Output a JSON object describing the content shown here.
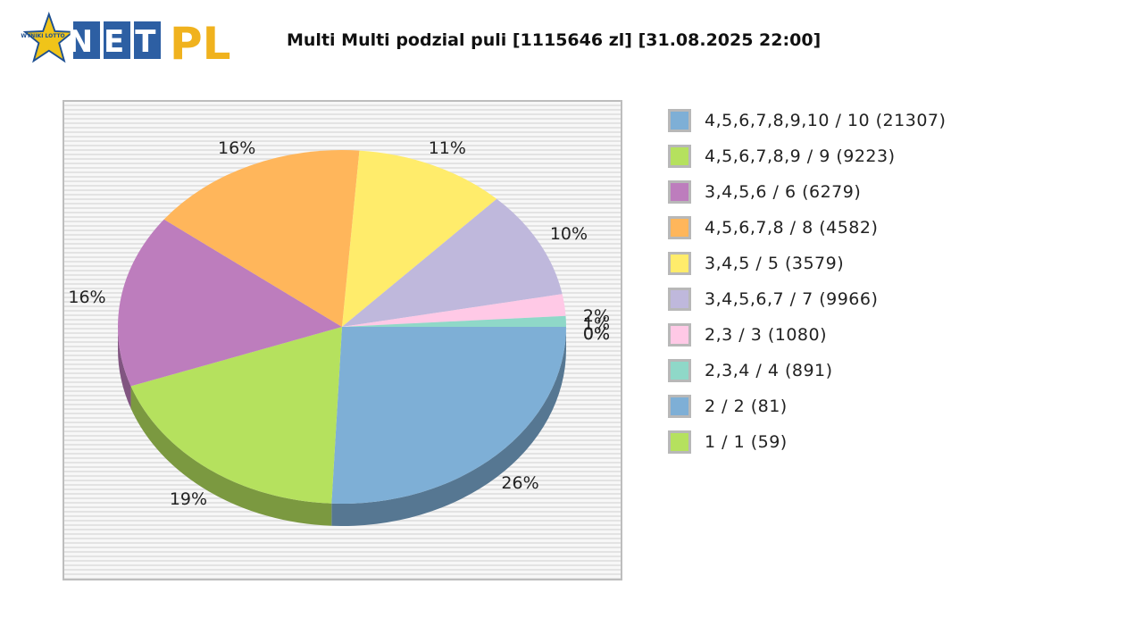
{
  "header": {
    "logo_text": "NET",
    "logo_suffix": "PL",
    "badge_text": "WYNIKI LOTTO",
    "title": "Multi Multi podzial puli [1115646 zl] [31.08.2025 22:00]"
  },
  "chart_data": {
    "type": "pie",
    "title": "Multi Multi podzial puli [1115646 zl] [31.08.2025 22:00]",
    "three_d": true,
    "legend_position": "right",
    "slices": [
      {
        "label": "4,5,6,7,8,9,10 / 10 (21307)",
        "value": 26,
        "pct_label": "26%",
        "color": "#7eafd6"
      },
      {
        "label": "4,5,6,7,8,9 / 9 (9223)",
        "value": 19,
        "pct_label": "19%",
        "color": "#b5e15e"
      },
      {
        "label": "3,4,5,6 / 6 (6279)",
        "value": 16,
        "pct_label": "16%",
        "color": "#bd7dbd"
      },
      {
        "label": "4,5,6,7,8 / 8 (4582)",
        "value": 16,
        "pct_label": "16%",
        "color": "#ffb65b"
      },
      {
        "label": "3,4,5 / 5 (3579)",
        "value": 11,
        "pct_label": "11%",
        "color": "#ffec6b"
      },
      {
        "label": "3,4,5,6,7 / 7 (9966)",
        "value": 10,
        "pct_label": "10%",
        "color": "#bfb8dc"
      },
      {
        "label": "2,3 / 3 (1080)",
        "value": 2,
        "pct_label": "2%",
        "color": "#ffc9e6"
      },
      {
        "label": "2,3,4 / 4 (891)",
        "value": 1,
        "pct_label": "1%",
        "color": "#8fd8c8"
      },
      {
        "label": "2 / 2 (81)",
        "value": 0,
        "pct_label": "0%",
        "color": "#7eafd6"
      },
      {
        "label": "1 / 1 (59)",
        "value": 0,
        "pct_label": "0%",
        "color": "#b5e15e"
      }
    ]
  }
}
